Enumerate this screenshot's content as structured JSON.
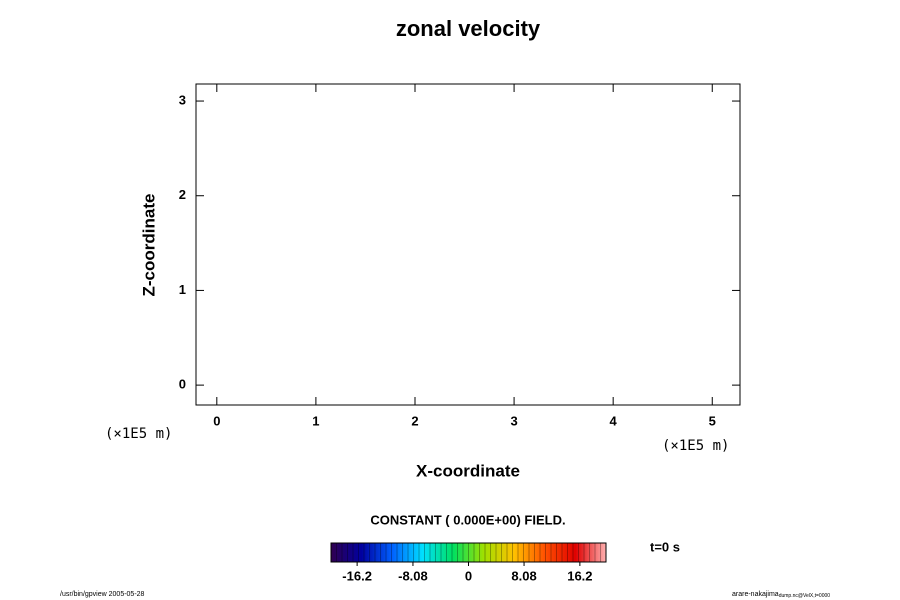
{
  "chart_data": {
    "type": "contour",
    "title": "zonal velocity",
    "x_label": "X-coordinate",
    "y_label": "Z-coordinate",
    "x_unit_left": "(×1E5 m)",
    "x_unit_right": "(×1E5 m)",
    "field_note": "CONSTANT ( 0.000E+00) FIELD.",
    "time_label": "t=0 s",
    "footer_left": "/usr/bin/gpview 2005-05-28",
    "footer_right": "arare-nakajima",
    "footer_right_sub": "dump.nc@VelX,t=0000",
    "xlim": [
      -0.21,
      5.28
    ],
    "xticks": [
      0,
      1,
      2,
      3,
      4,
      5
    ],
    "ylim": [
      -0.21,
      3.18
    ],
    "yticks": [
      0,
      1,
      2,
      3
    ],
    "colorbar": {
      "lim": [
        -20,
        20
      ],
      "ticks": [
        -16.2,
        -8.08,
        0,
        8.08,
        16.2
      ],
      "colors": [
        "#300050",
        "#0000a0",
        "#0060ff",
        "#00e0ff",
        "#00e060",
        "#a0e000",
        "#ffc000",
        "#ff5000",
        "#e00000",
        "#ffb0b0"
      ]
    }
  }
}
